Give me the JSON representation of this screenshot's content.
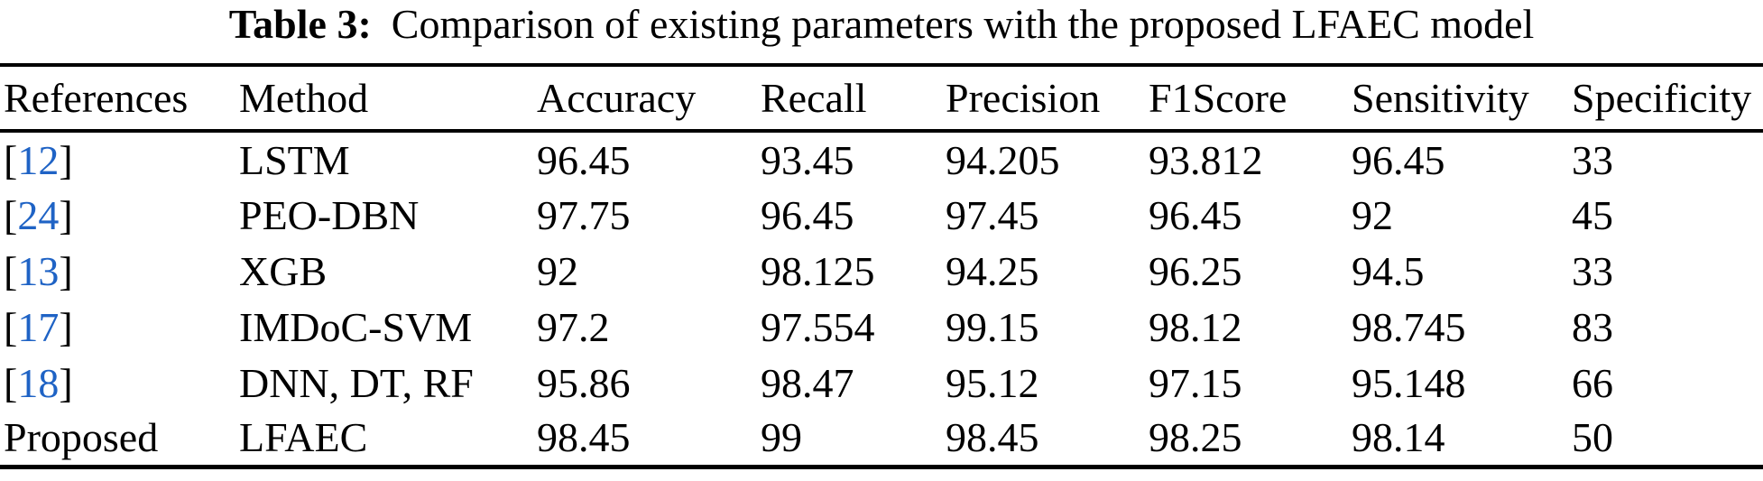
{
  "title": {
    "label": "Table 3:",
    "text": "Comparison of existing parameters with the proposed LFAEC model"
  },
  "colors": {
    "citation": "#1f63c5",
    "text": "#000000",
    "rule": "#000000",
    "background": "#ffffff"
  },
  "table": {
    "columns": [
      "References",
      "Method",
      "Accuracy",
      "Recall",
      "Precision",
      "F1Score",
      "Sensitivity",
      "Specificity"
    ],
    "rows": [
      {
        "ref_open": "[",
        "ref": "12",
        "ref_close": "]",
        "ref_type": "citation",
        "ref_interactable": "true",
        "method": "LSTM",
        "values": [
          "96.45",
          "93.45",
          "94.205",
          "93.812",
          "96.45",
          "33"
        ]
      },
      {
        "ref_open": "[",
        "ref": "24",
        "ref_close": "]",
        "ref_type": "citation",
        "ref_interactable": "true",
        "method": "PEO-DBN",
        "values": [
          "97.75",
          "96.45",
          "97.45",
          "96.45",
          "92",
          "45"
        ]
      },
      {
        "ref_open": "[",
        "ref": "13",
        "ref_close": "]",
        "ref_type": "citation",
        "ref_interactable": "true",
        "method": "XGB",
        "values": [
          "92",
          "98.125",
          "94.25",
          "96.25",
          "94.5",
          "33"
        ]
      },
      {
        "ref_open": "[",
        "ref": "17",
        "ref_close": "]",
        "ref_type": "citation",
        "ref_interactable": "true",
        "method": "IMDoC-SVM",
        "values": [
          "97.2",
          "97.554",
          "99.15",
          "98.12",
          "98.745",
          "83"
        ]
      },
      {
        "ref_open": "[",
        "ref": "18",
        "ref_close": "]",
        "ref_type": "citation",
        "ref_interactable": "true",
        "method": "DNN, DT, RF",
        "values": [
          "95.86",
          "98.47",
          "95.12",
          "97.15",
          "95.148",
          "66"
        ]
      },
      {
        "ref_open": "",
        "ref": "Proposed",
        "ref_close": "",
        "ref_type": "plain",
        "ref_interactable": "false",
        "method": "LFAEC",
        "values": [
          "98.45",
          "99",
          "98.45",
          "98.25",
          "98.14",
          "50"
        ]
      }
    ]
  }
}
